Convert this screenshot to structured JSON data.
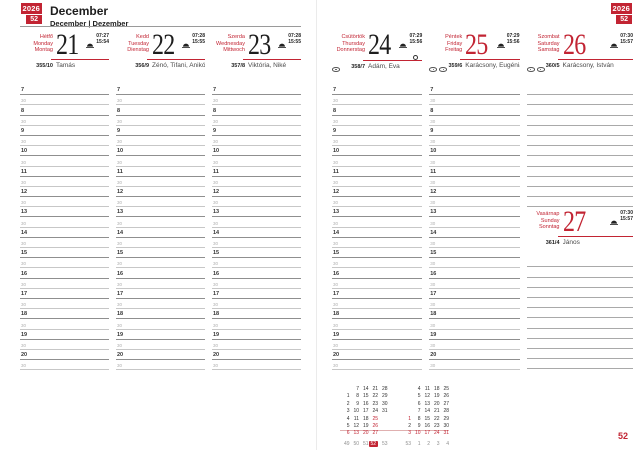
{
  "page": {
    "year": "2026",
    "week": "52",
    "month_title": "December",
    "month_subtitle": "December | Dezember",
    "page_number": "52"
  },
  "days": [
    {
      "name_hu": "Hétfő",
      "name_en": "Monday",
      "name_de": "Montag",
      "date": "21",
      "sunrise": "07:27",
      "sunset": "15:54",
      "day_of_year": "355/10",
      "namedays": "Tamás"
    },
    {
      "name_hu": "Kedd",
      "name_en": "Tuesday",
      "name_de": "Dienstag",
      "date": "22",
      "sunrise": "07:28",
      "sunset": "15:55",
      "day_of_year": "356/9",
      "namedays": "Zénó, Tifani, Anikó"
    },
    {
      "name_hu": "Szerda",
      "name_en": "Wednesday",
      "name_de": "Mittwoch",
      "date": "23",
      "sunrise": "07:28",
      "sunset": "15:55",
      "day_of_year": "357/8",
      "namedays": "Viktória, Niké"
    },
    {
      "name_hu": "Csütörtök",
      "name_en": "Thursday",
      "name_de": "Donnerstag",
      "date": "24",
      "sunrise": "07:29",
      "sunset": "15:56",
      "day_of_year": "358/7",
      "namedays": "Ádám, Éva",
      "moon": "full-moon"
    },
    {
      "name_hu": "Péntek",
      "name_en": "Friday",
      "name_de": "Freitag",
      "date": "25",
      "sunrise": "07:29",
      "sunset": "15:56",
      "day_of_year": "359/6",
      "namedays": "Karácsony, Eugénia"
    },
    {
      "name_hu": "Szombat",
      "name_en": "Saturday",
      "name_de": "Samstag",
      "date": "26",
      "sunrise": "07:30",
      "sunset": "15:57",
      "day_of_year": "360/5",
      "namedays": "Karácsony, István"
    },
    {
      "name_hu": "Vasárnap",
      "name_en": "Sunday",
      "name_de": "Sonntag",
      "date": "27",
      "sunrise": "07:30",
      "sunset": "15:57",
      "day_of_year": "361/4",
      "namedays": "János"
    }
  ],
  "schedule": {
    "hours": [
      "7",
      "8",
      "9",
      "10",
      "11",
      "12",
      "13",
      "14",
      "15",
      "16",
      "17",
      "18",
      "19",
      "20"
    ],
    "half_hour_label": "30"
  },
  "badges": {
    "thursday": 1,
    "friday": 2,
    "saturday": 2
  },
  "mini_calendar": {
    "december": {
      "day_rows": [
        [
          "",
          "7",
          "14",
          "21",
          "28"
        ],
        [
          "1",
          "8",
          "15",
          "22",
          "29"
        ],
        [
          "2",
          "9",
          "16",
          "23",
          "30"
        ],
        [
          "3",
          "10",
          "17",
          "24",
          "31"
        ],
        [
          "4",
          "11",
          "18",
          "25",
          ""
        ],
        [
          "5",
          "12",
          "19",
          "26",
          ""
        ],
        [
          "6",
          "13",
          "20",
          "27",
          ""
        ]
      ],
      "week_numbers": [
        "49",
        "50",
        "51",
        "52",
        "53"
      ],
      "red_days": [
        "6",
        "13",
        "20",
        "25",
        "26",
        "27"
      ],
      "highlight_week_index": 3
    },
    "january": {
      "day_rows": [
        [
          "",
          "4",
          "11",
          "18",
          "25"
        ],
        [
          "",
          "5",
          "12",
          "19",
          "26"
        ],
        [
          "",
          "6",
          "13",
          "20",
          "27"
        ],
        [
          "",
          "7",
          "14",
          "21",
          "28"
        ],
        [
          "1",
          "8",
          "15",
          "22",
          "29"
        ],
        [
          "2",
          "9",
          "16",
          "23",
          "30"
        ],
        [
          "3",
          "10",
          "17",
          "24",
          "31"
        ]
      ],
      "week_numbers": [
        "53",
        "1",
        "2",
        "3",
        "4"
      ],
      "red_days": [
        "1",
        "3",
        "10",
        "17",
        "24",
        "31"
      ],
      "highlight_week_index": -1
    }
  },
  "colors": {
    "accent_red": "#c22433"
  }
}
